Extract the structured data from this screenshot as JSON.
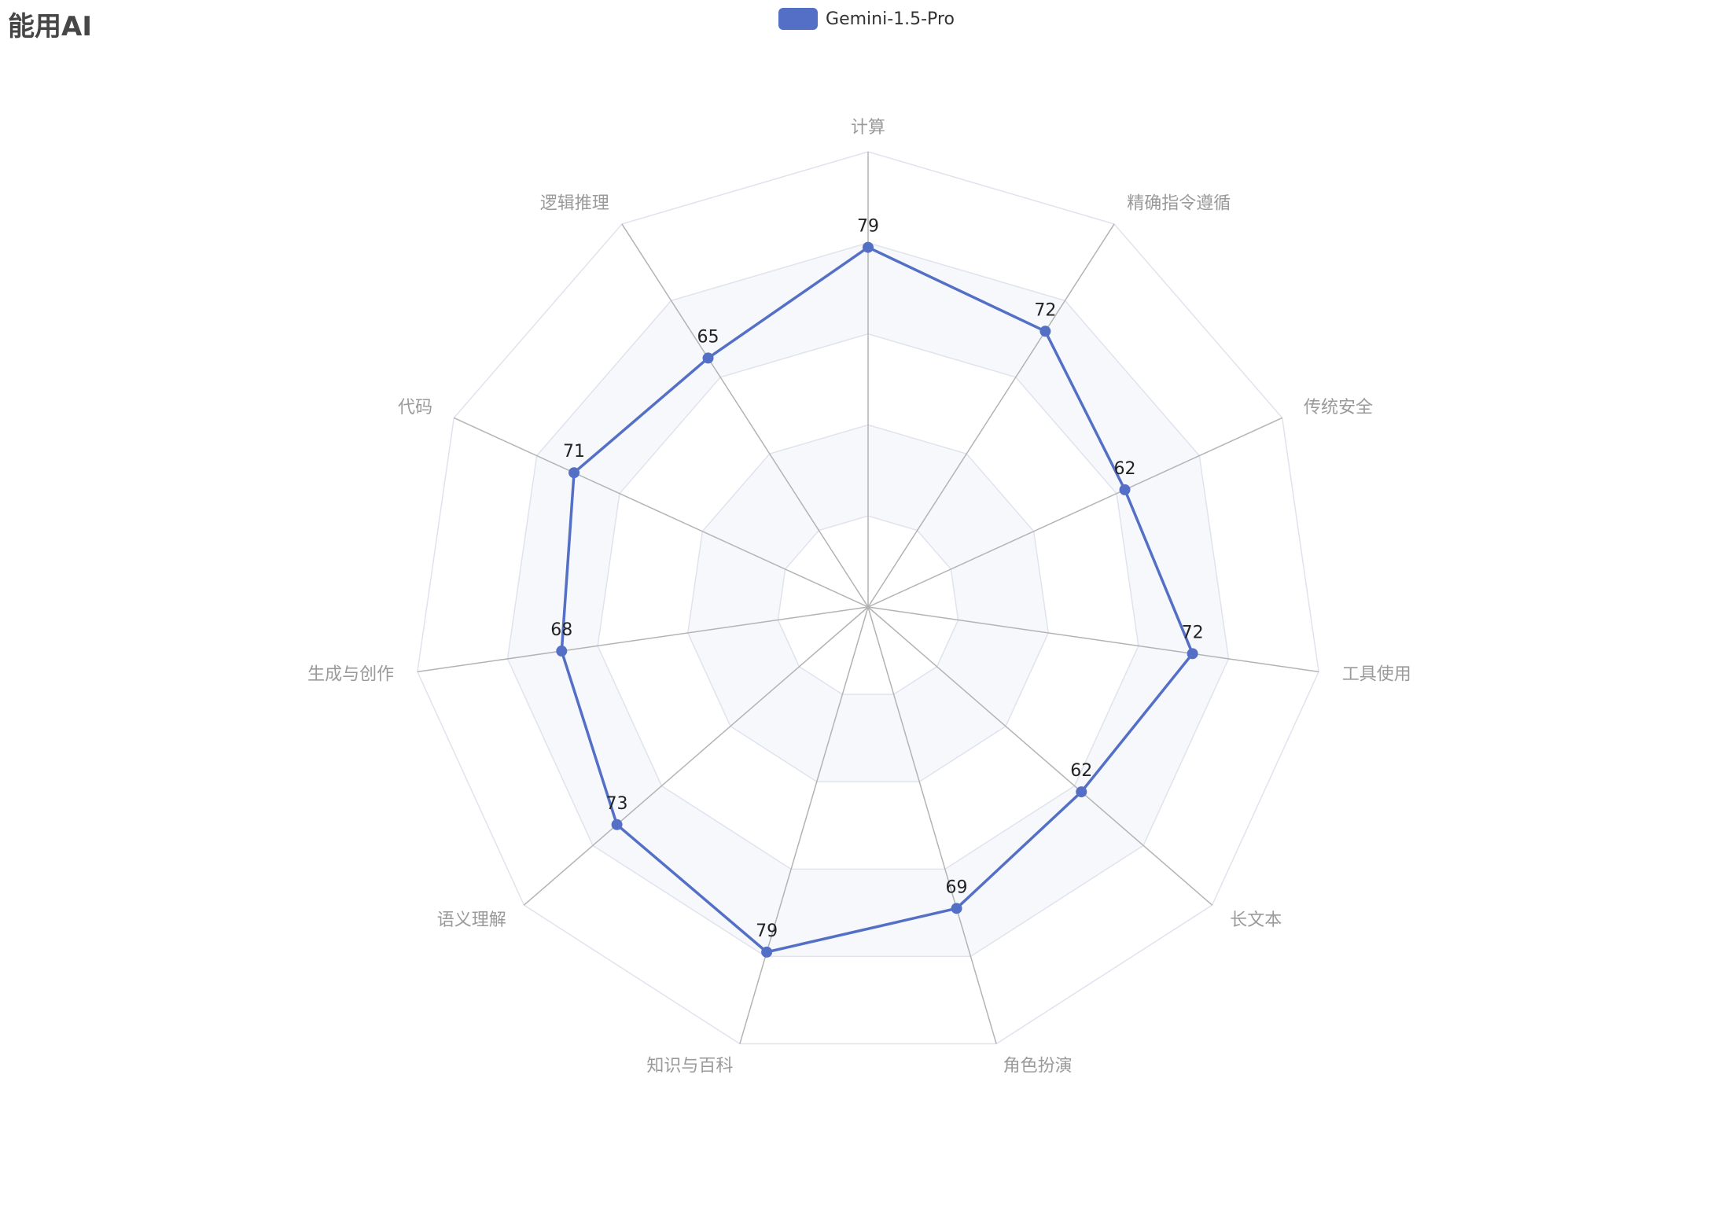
{
  "chart_data": {
    "type": "radar",
    "title": "能用AI",
    "indicators": [
      "计算",
      "精确指令遵循",
      "传统安全",
      "工具使用",
      "长文本",
      "角色扮演",
      "知识与百科",
      "语义理解",
      "生成与创作",
      "代码",
      "逻辑推理"
    ],
    "max": 100,
    "split_number": 5,
    "series": [
      {
        "name": "Gemini-1.5-Pro",
        "color": "#5470c6",
        "values": [
          79,
          72,
          62,
          72,
          62,
          69,
          79,
          73,
          68,
          71,
          65
        ]
      }
    ],
    "legend_position": "top-center",
    "split_area_colors": [
      "#ffffff",
      "#f7f8fc"
    ],
    "split_line_color": "#e0e3ee",
    "axis_line_color": "#b3b3b3"
  }
}
